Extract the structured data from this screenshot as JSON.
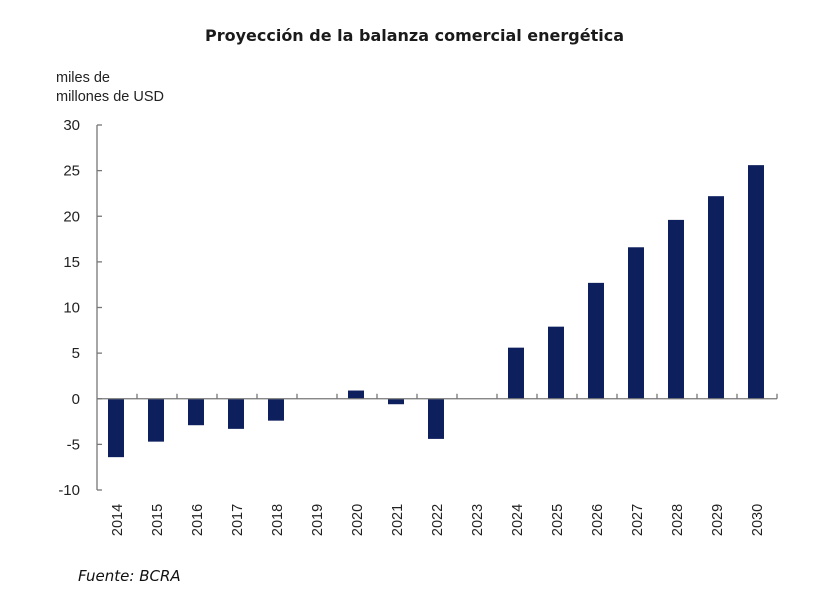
{
  "chart_data": {
    "type": "bar",
    "title": "Proyección de la balanza comercial energética",
    "ylabel": "miles de millones de USD",
    "ylabel_lines": [
      "miles de",
      "millones de USD"
    ],
    "xlabel": "",
    "categories": [
      "2014",
      "2015",
      "2016",
      "2017",
      "2018",
      "2019",
      "2020",
      "2021",
      "2022",
      "2023",
      "2024",
      "2025",
      "2026",
      "2027",
      "2028",
      "2029",
      "2030"
    ],
    "values": [
      -6.4,
      -4.7,
      -2.9,
      -3.3,
      -2.4,
      0,
      0.9,
      -0.6,
      -4.4,
      0,
      5.6,
      7.9,
      12.7,
      16.6,
      19.6,
      22.2,
      25.6
    ],
    "ylim": [
      -10,
      30
    ],
    "yticks": [
      30,
      25,
      20,
      15,
      10,
      5,
      0,
      -5,
      -10
    ],
    "grid": false,
    "legend": null,
    "bar_color": "#0d1f5c",
    "source": "Fuente: BCRA"
  }
}
